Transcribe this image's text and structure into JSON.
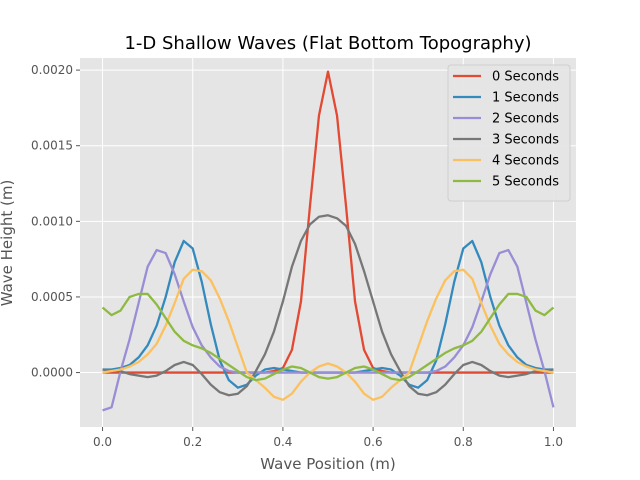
{
  "chart_data": {
    "type": "line",
    "title": "1-D Shallow Waves (Flat Bottom Topography)",
    "xlabel": "Wave Position (m)",
    "ylabel": "Wave Height (m)",
    "xlim": [
      -0.05,
      1.05
    ],
    "ylim": [
      -0.00036,
      0.00208
    ],
    "xticks": [
      0.0,
      0.2,
      0.4,
      0.6,
      0.8,
      1.0
    ],
    "xtick_labels": [
      "0.0",
      "0.2",
      "0.4",
      "0.6",
      "0.8",
      "1.0"
    ],
    "yticks": [
      0.0,
      0.0005,
      0.001,
      0.0015,
      0.002
    ],
    "ytick_labels": [
      "0.0000",
      "0.0005",
      "0.0010",
      "0.0015",
      "0.0020"
    ],
    "grid": true,
    "legend_position": "top-right",
    "x": [
      0.0,
      0.02,
      0.04,
      0.06,
      0.08,
      0.1,
      0.12,
      0.14,
      0.16,
      0.18,
      0.2,
      0.22,
      0.24,
      0.26,
      0.28,
      0.3,
      0.32,
      0.34,
      0.36,
      0.38,
      0.4,
      0.42,
      0.44,
      0.46,
      0.48,
      0.5,
      0.52,
      0.54,
      0.56,
      0.58,
      0.6,
      0.62,
      0.64,
      0.66,
      0.68,
      0.7,
      0.72,
      0.74,
      0.76,
      0.78,
      0.8,
      0.82,
      0.84,
      0.86,
      0.88,
      0.9,
      0.92,
      0.94,
      0.96,
      0.98,
      1.0
    ],
    "series": [
      {
        "name": "0 Seconds",
        "color": "#E24A33",
        "values": [
          0,
          0,
          0,
          0,
          0,
          0,
          0,
          0,
          0,
          0,
          0,
          0,
          0,
          0,
          0,
          0,
          0,
          0,
          0,
          1e-05,
          3e-05,
          0.00015,
          0.00047,
          0.0011,
          0.0017,
          0.00199,
          0.0017,
          0.0011,
          0.00047,
          0.00015,
          3e-05,
          1e-05,
          0,
          0,
          0,
          0,
          0,
          0,
          0,
          0,
          0,
          0,
          0,
          0,
          0,
          0,
          0,
          0,
          0,
          0,
          0
        ]
      },
      {
        "name": "1 Seconds",
        "color": "#348ABD",
        "values": [
          2e-05,
          2e-05,
          3e-05,
          5e-05,
          0.0001,
          0.00018,
          0.00031,
          0.0005,
          0.00073,
          0.00087,
          0.00082,
          0.0006,
          0.00032,
          8e-05,
          -5e-05,
          -0.0001,
          -8e-05,
          -2e-05,
          2e-05,
          3e-05,
          2e-05,
          1e-05,
          0,
          0,
          0,
          0,
          0,
          0,
          0,
          1e-05,
          2e-05,
          3e-05,
          2e-05,
          -2e-05,
          -8e-05,
          -0.0001,
          -5e-05,
          8e-05,
          0.00032,
          0.0006,
          0.00082,
          0.00087,
          0.00073,
          0.0005,
          0.00031,
          0.00018,
          0.0001,
          5e-05,
          3e-05,
          2e-05,
          2e-05
        ]
      },
      {
        "name": "2 Seconds",
        "color": "#988ED5",
        "values": [
          -0.00025,
          -0.00023,
          1e-05,
          0.00022,
          0.00046,
          0.0007,
          0.00081,
          0.00079,
          0.00065,
          0.00047,
          0.0003,
          0.00018,
          0.0001,
          4e-05,
          1e-05,
          0,
          0,
          0,
          0,
          0,
          0,
          0,
          0,
          0,
          0,
          0,
          0,
          0,
          0,
          0,
          0,
          0,
          0,
          0,
          0,
          0,
          0,
          1e-05,
          4e-05,
          0.0001,
          0.00018,
          0.0003,
          0.00047,
          0.00065,
          0.00079,
          0.00081,
          0.0007,
          0.00046,
          0.00022,
          1e-05,
          -0.00023
        ]
      },
      {
        "name": "3 Seconds",
        "color": "#777777",
        "values": [
          2e-05,
          1e-05,
          1e-05,
          -1e-05,
          -2e-05,
          -3e-05,
          -2e-05,
          1e-05,
          5e-05,
          7e-05,
          5e-05,
          -1e-05,
          -8e-05,
          -0.00013,
          -0.00015,
          -0.00014,
          -9e-05,
          1e-05,
          0.00012,
          0.00027,
          0.00047,
          0.0007,
          0.00087,
          0.00098,
          0.00103,
          0.00104,
          0.00102,
          0.00097,
          0.00085,
          0.00067,
          0.00047,
          0.00027,
          0.00012,
          1e-05,
          -9e-05,
          -0.00014,
          -0.00015,
          -0.00013,
          -8e-05,
          -1e-05,
          5e-05,
          7e-05,
          5e-05,
          1e-05,
          -2e-05,
          -3e-05,
          -2e-05,
          -1e-05,
          1e-05,
          1e-05,
          2e-05
        ]
      },
      {
        "name": "4 Seconds",
        "color": "#FBC15E",
        "values": [
          0.0,
          1e-05,
          2e-05,
          4e-05,
          7e-05,
          0.00012,
          0.00019,
          0.00031,
          0.00046,
          0.00062,
          0.00068,
          0.00067,
          0.00061,
          0.00049,
          0.00034,
          0.00017,
          0.0,
          -5e-05,
          -0.0001,
          -0.00016,
          -0.00018,
          -0.00014,
          -6e-05,
          0.0,
          4e-05,
          6e-05,
          4e-05,
          0.0,
          -6e-05,
          -0.00014,
          -0.00018,
          -0.00016,
          -0.0001,
          -5e-05,
          0.0,
          0.00017,
          0.00034,
          0.00049,
          0.00061,
          0.00067,
          0.00068,
          0.00062,
          0.00046,
          0.00031,
          0.00019,
          0.00012,
          7e-05,
          4e-05,
          2e-05,
          1e-05,
          0.0
        ]
      },
      {
        "name": "5 Seconds",
        "color": "#8EBA42",
        "values": [
          0.00043,
          0.00038,
          0.00041,
          0.0005,
          0.00052,
          0.00052,
          0.00045,
          0.00036,
          0.00027,
          0.00021,
          0.00018,
          0.00016,
          0.00013,
          9e-05,
          5e-05,
          1e-05,
          -3e-05,
          -5e-05,
          -4e-05,
          -1e-05,
          2e-05,
          4e-05,
          3e-05,
          0.0,
          -3e-05,
          -4e-05,
          -3e-05,
          0.0,
          3e-05,
          4e-05,
          2e-05,
          -1e-05,
          -4e-05,
          -5e-05,
          -3e-05,
          1e-05,
          5e-05,
          9e-05,
          0.00013,
          0.00016,
          0.00018,
          0.00021,
          0.00027,
          0.00036,
          0.00045,
          0.00052,
          0.00052,
          0.0005,
          0.00041,
          0.00038,
          0.00043
        ]
      }
    ]
  }
}
